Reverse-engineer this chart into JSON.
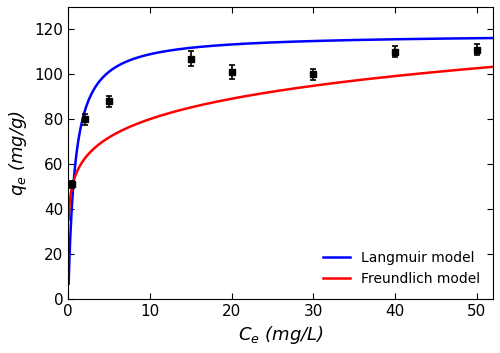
{
  "scatter_x": [
    0.5,
    2,
    5,
    15,
    20,
    30,
    40,
    50
  ],
  "scatter_y": [
    51,
    80,
    88,
    107,
    101,
    100,
    110,
    111
  ],
  "scatter_yerr": [
    1.5,
    2.5,
    2.5,
    3.5,
    3.0,
    2.5,
    2.5,
    2.5
  ],
  "langmuir_qmax": 118.0,
  "langmuir_KL": 1.2,
  "freundlich_KF": 56.0,
  "freundlich_n": 0.155,
  "xlim": [
    0,
    52
  ],
  "ylim": [
    0,
    130
  ],
  "xticks": [
    0,
    10,
    20,
    30,
    40,
    50
  ],
  "yticks": [
    0,
    20,
    40,
    60,
    80,
    100,
    120
  ],
  "xlabel": "$C_e$ (mg/L)",
  "ylabel": "$q_e$ (mg/g)",
  "langmuir_label": "Langmuir model",
  "freundlich_label": "Freundlich model",
  "langmuir_color": "#0000FF",
  "freundlich_color": "#FF0000",
  "scatter_color": "black",
  "background_color": "#ffffff",
  "legend_fontsize": 10,
  "axis_fontsize": 13,
  "tick_fontsize": 11
}
